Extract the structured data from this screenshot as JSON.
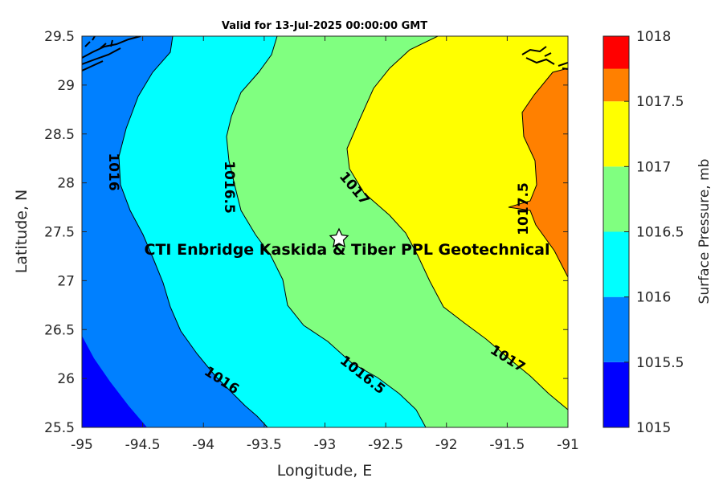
{
  "chart_data": {
    "type": "contour-map",
    "title": "Valid for 13-Jul-2025 00:00:00 GMT",
    "xlabel": "Longitude, E",
    "ylabel": "Latitude, N",
    "xlim": [
      -95,
      -91
    ],
    "ylim": [
      25.5,
      29.5
    ],
    "xticks": [
      "-95",
      "-94.5",
      "-94",
      "-93.5",
      "-93",
      "-92.5",
      "-92",
      "-91.5",
      "-91"
    ],
    "yticks": [
      "29.5",
      "29",
      "28.5",
      "28",
      "27.5",
      "27",
      "26.5",
      "26",
      "25.5"
    ],
    "colorbar": {
      "label": "Surface Pressure, mb",
      "ticks": [
        "1018",
        "1017.5",
        "1017",
        "1016.5",
        "1016",
        "1015.5",
        "1015"
      ],
      "levels": [
        {
          "from": 1015.0,
          "to": 1015.5,
          "color": "#0000ff"
        },
        {
          "from": 1015.5,
          "to": 1016.0,
          "color": "#0080ff"
        },
        {
          "from": 1016.0,
          "to": 1016.5,
          "color": "#00ffff"
        },
        {
          "from": 1016.5,
          "to": 1017.0,
          "color": "#80ff80"
        },
        {
          "from": 1017.0,
          "to": 1017.5,
          "color": "#ffff00"
        },
        {
          "from": 1017.5,
          "to": 1018.0,
          "color": "#ff8000"
        },
        {
          "from": 1018.0,
          "to": 1018.5,
          "color": "#ff0000"
        }
      ]
    },
    "contour_labels": [
      {
        "text": "1016",
        "lon": -94.75,
        "lat": 28.1
      },
      {
        "text": "1016.5",
        "lon": -93.8,
        "lat": 27.95
      },
      {
        "text": "1017",
        "lon": -92.9,
        "lat": 28.0
      },
      {
        "text": "1017.5",
        "lon": -91.4,
        "lat": 27.7
      },
      {
        "text": "1016",
        "lon": -93.85,
        "lat": 26.0
      },
      {
        "text": "1016.5",
        "lon": -92.8,
        "lat": 26.05
      },
      {
        "text": "1017",
        "lon": -91.4,
        "lat": 26.2
      }
    ],
    "site": {
      "label": "CTI Enbridge  Kaskida & Tiber PPL Geotechnical",
      "lon": -92.87,
      "lat": 27.43
    }
  }
}
